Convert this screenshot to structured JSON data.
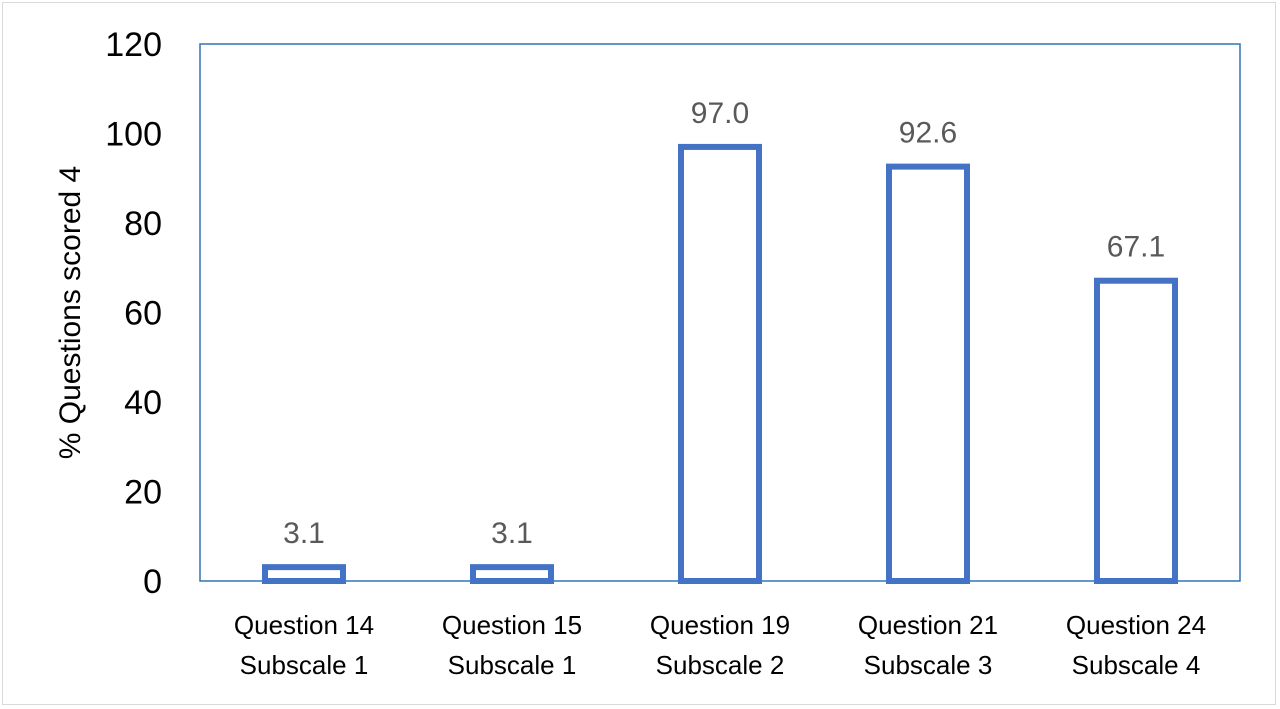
{
  "chart_data": {
    "type": "bar",
    "title": "",
    "xlabel": "",
    "ylabel": "% Questions scored 4",
    "ylim": [
      0,
      120
    ],
    "yticks": [
      0,
      20,
      40,
      60,
      80,
      100,
      120
    ],
    "grid": false,
    "legend": "none",
    "categories": [
      [
        "Question 14",
        "Subscale 1"
      ],
      [
        "Question 15",
        "Subscale 1"
      ],
      [
        "Question 19",
        "Subscale 2"
      ],
      [
        "Question 21",
        "Subscale 3"
      ],
      [
        "Question 24",
        "Subscale 4"
      ]
    ],
    "values": [
      3.1,
      3.1,
      97.0,
      92.6,
      67.1
    ],
    "data_labels": [
      "3.1",
      "3.1",
      "97.0",
      "92.6",
      "67.1"
    ],
    "colors": {
      "bar_outline": "#4472c4",
      "bar_fill": "#ffffff",
      "plot_border": "#2e75b6",
      "data_label": "#595959"
    }
  }
}
